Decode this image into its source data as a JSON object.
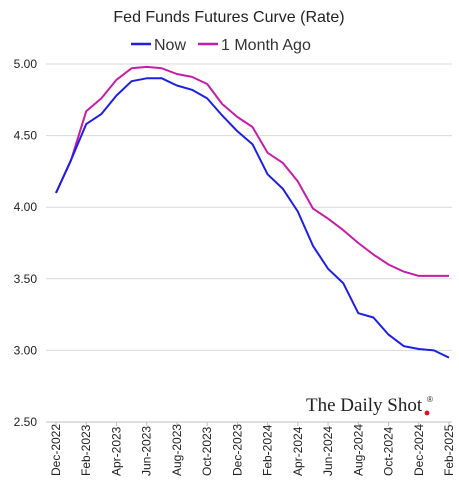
{
  "chart_data": {
    "type": "line",
    "title": "Fed Funds Futures Curve (Rate)",
    "xlabel": "",
    "ylabel": "",
    "x_tick_labels": [
      "Dec-2022",
      "Feb-2023",
      "Apr-2023",
      "Jun-2023",
      "Aug-2023",
      "Oct-2023",
      "Dec-2023",
      "Feb-2024",
      "Apr-2024",
      "Jun-2024",
      "Aug-2024",
      "Oct-2024",
      "Dec-2024",
      "Feb-2025"
    ],
    "ylim": [
      2.5,
      5.0
    ],
    "y_ticks": [
      "2.50",
      "3.00",
      "3.50",
      "4.00",
      "4.50",
      "5.00"
    ],
    "grid": "horizontal",
    "legend": "top",
    "series": [
      {
        "name": "Now",
        "color": "#1f1fe0",
        "values": [
          4.1,
          4.33,
          4.58,
          4.65,
          4.78,
          4.88,
          4.9,
          4.9,
          4.85,
          4.82,
          4.76,
          4.64,
          4.53,
          4.44,
          4.23,
          4.13,
          3.97,
          3.73,
          3.57,
          3.47,
          3.26,
          3.23,
          3.11,
          3.03,
          3.01,
          3.0,
          2.95
        ]
      },
      {
        "name": "1 Month Ago",
        "color": "#c41ea6",
        "values": [
          4.1,
          4.33,
          4.67,
          4.76,
          4.89,
          4.97,
          4.98,
          4.97,
          4.93,
          4.91,
          4.86,
          4.72,
          4.63,
          4.56,
          4.38,
          4.31,
          4.18,
          3.99,
          3.92,
          3.84,
          3.75,
          3.67,
          3.6,
          3.55,
          3.52,
          3.52,
          3.52
        ]
      }
    ]
  },
  "branding": {
    "name": "The Daily Shot",
    "mark": "®",
    "dot_color": "#e0101e"
  }
}
